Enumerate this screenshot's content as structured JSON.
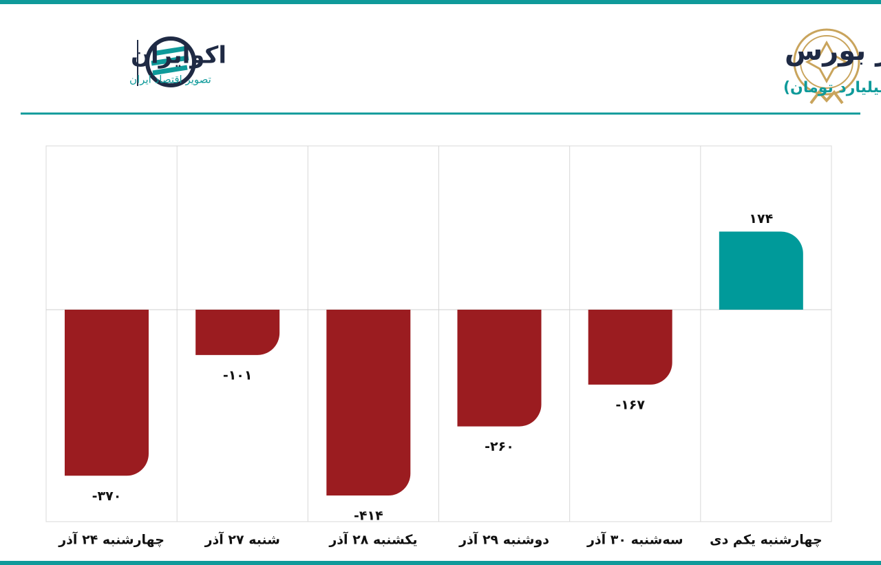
{
  "brand": {
    "name": "اکوایران",
    "tagline": "تصویر اقتصاد ایران"
  },
  "chart_data": {
    "type": "bar",
    "title": "روند ورود و خروج پول حقیقی در بورس",
    "subtitle": "(واحد:میلیارد تومان)",
    "categories": [
      "چهارشنبه ۲۴ آذر",
      "شنبه ۲۷ آذر",
      "یکشنبه ۲۸ آذر",
      "دوشنبه ۲۹ آذر",
      "سه‌شنبه ۳۰ آذر",
      "چهارشنبه یکم دی"
    ],
    "values": [
      -370,
      -101,
      -414,
      -260,
      -167,
      174
    ],
    "value_labels": [
      "-۳۷۰",
      "-۱۰۱",
      "-۴۱۴",
      "-۲۶۰",
      "-۱۶۷",
      "۱۷۴"
    ],
    "negative_color": "#9b1c20",
    "positive_color": "#009a9a",
    "grid": true
  }
}
